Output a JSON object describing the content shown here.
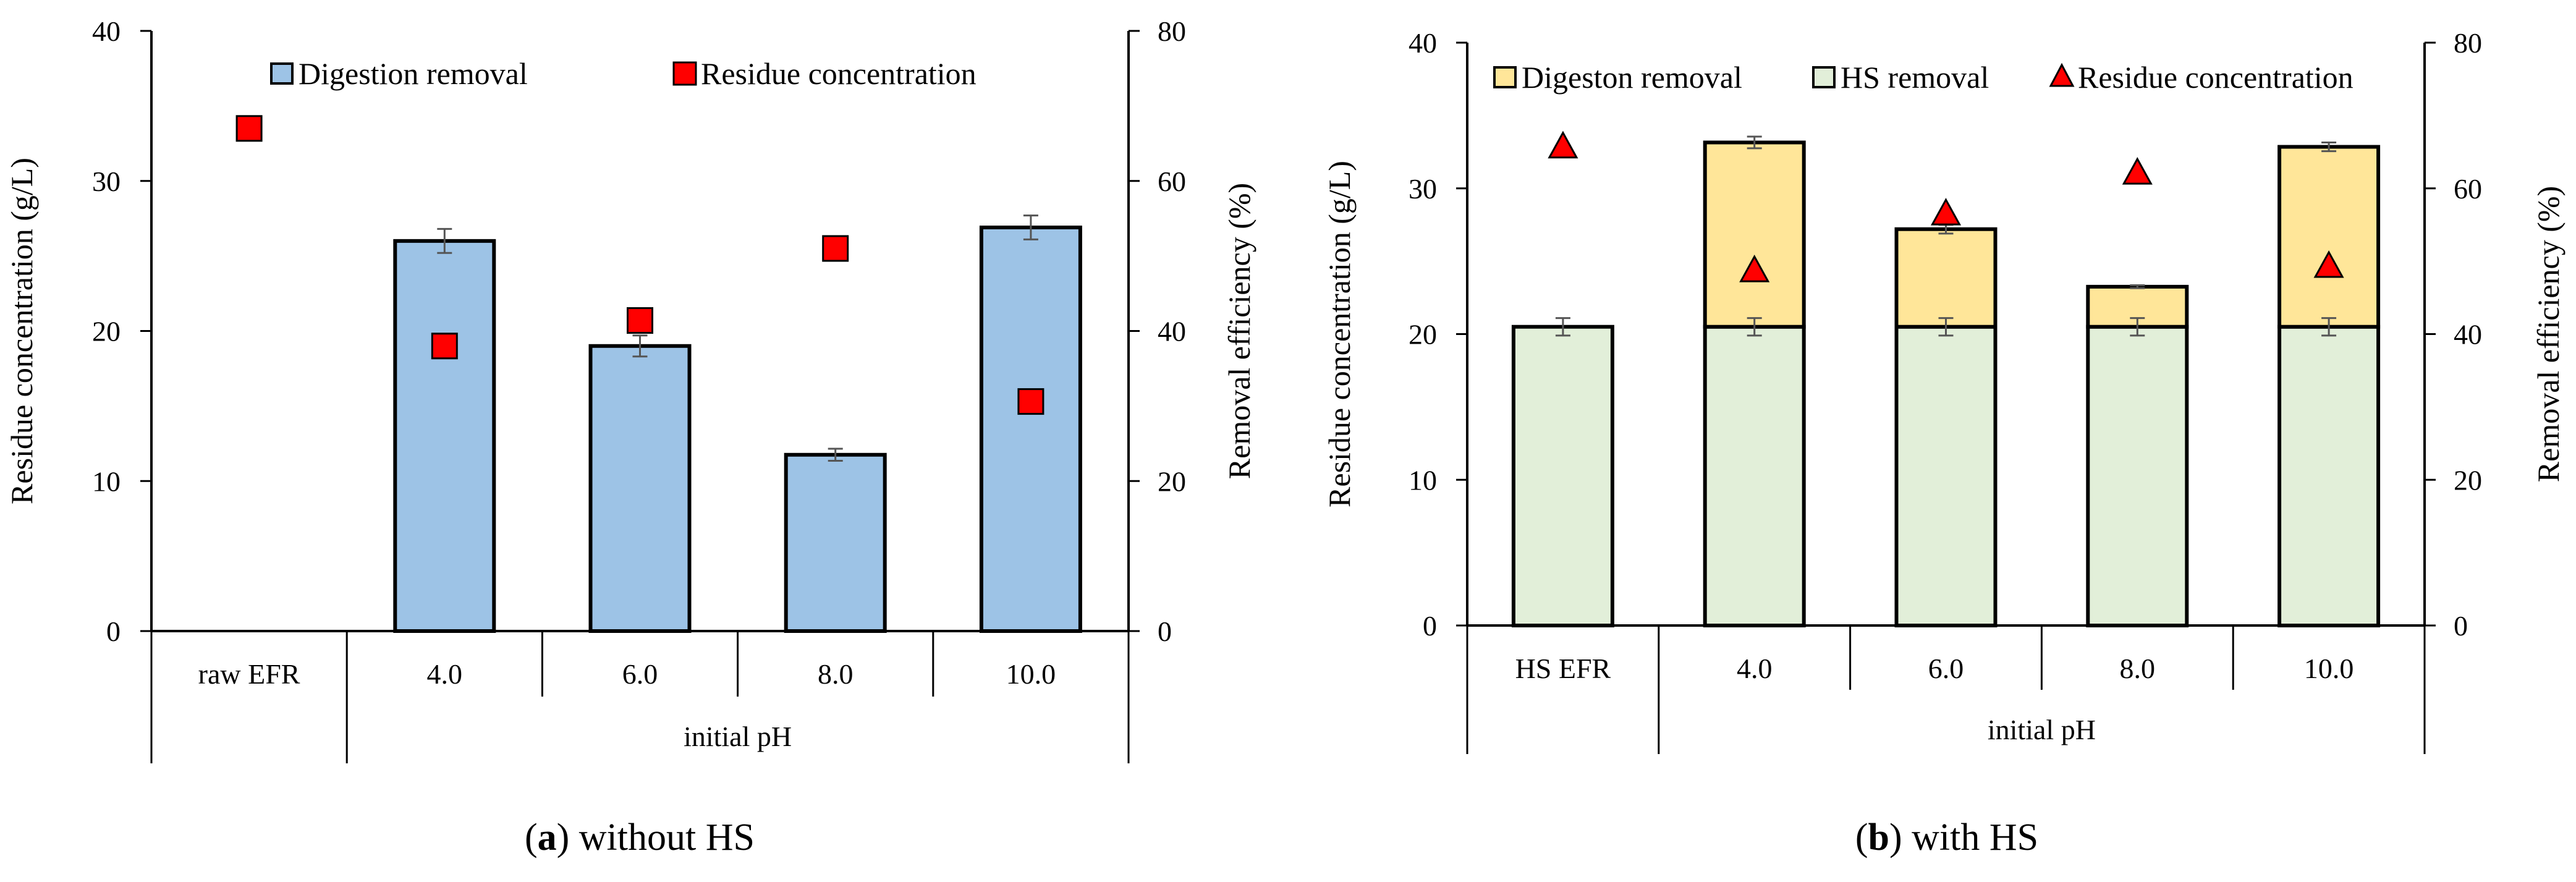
{
  "chart_data": [
    {
      "type": "bar",
      "panel": "a",
      "caption_letter": "a",
      "caption_text": "without HS",
      "categories": [
        "raw EFR",
        "4.0",
        "6.0",
        "8.0",
        "10.0"
      ],
      "group_label": "initial pH",
      "ylabel_left": "Residue concentration (g/L)",
      "ylabel_right": "Removal efficiency (%)",
      "ylim_left": [
        0,
        40
      ],
      "yticks_left": [
        "0",
        "10",
        "20",
        "30",
        "40"
      ],
      "ylim_right": [
        0,
        80
      ],
      "yticks_right": [
        "0",
        "20",
        "40",
        "60",
        "80"
      ],
      "legend": [
        "Digestion removal",
        "Residue concentration"
      ],
      "series": [
        {
          "name": "Digestion removal",
          "kind": "bar",
          "axis": "right",
          "color": "#9dc3e6",
          "values": [
            null,
            52.0,
            38.0,
            23.5,
            53.8
          ],
          "errors": [
            null,
            1.6,
            1.4,
            0.8,
            1.6
          ]
        },
        {
          "name": "Residue concentration",
          "kind": "marker",
          "marker": "square",
          "axis": "left",
          "color": "#ff0000",
          "values": [
            33.5,
            19.0,
            20.7,
            25.5,
            15.3
          ]
        }
      ]
    },
    {
      "type": "bar",
      "panel": "b",
      "caption_letter": "b",
      "caption_text": "with HS",
      "categories": [
        "HS EFR",
        "4.0",
        "6.0",
        "8.0",
        "10.0"
      ],
      "group_label": "initial pH",
      "ylabel_left": "Residue concentration (g/L)",
      "ylabel_right": "Removal efficiency (%)",
      "ylim_left": [
        0,
        40
      ],
      "yticks_left": [
        "0",
        "10",
        "20",
        "30",
        "40"
      ],
      "ylim_right": [
        0,
        80
      ],
      "yticks_right": [
        "0",
        "20",
        "40",
        "60",
        "80"
      ],
      "legend": [
        "Digeston removal",
        "HS removal",
        "Residue concentration"
      ],
      "series": [
        {
          "name": "HS removal",
          "kind": "stack-bottom",
          "axis": "right",
          "color": "#e2efd9",
          "values": [
            41.0,
            41.0,
            41.0,
            41.0,
            41.0
          ],
          "errors": [
            1.2,
            1.2,
            1.2,
            1.2,
            1.2
          ]
        },
        {
          "name": "Digeston removal",
          "kind": "stack-top",
          "axis": "right",
          "color": "#ffe699",
          "values": [
            null,
            25.3,
            13.4,
            5.5,
            24.7
          ],
          "errors": [
            null,
            0.8,
            0.6,
            0.2,
            0.6
          ]
        },
        {
          "name": "Residue concentration",
          "kind": "marker",
          "marker": "triangle",
          "axis": "left",
          "color": "#ff0000",
          "values": [
            32.8,
            24.3,
            28.2,
            31.0,
            24.6
          ]
        }
      ]
    }
  ]
}
